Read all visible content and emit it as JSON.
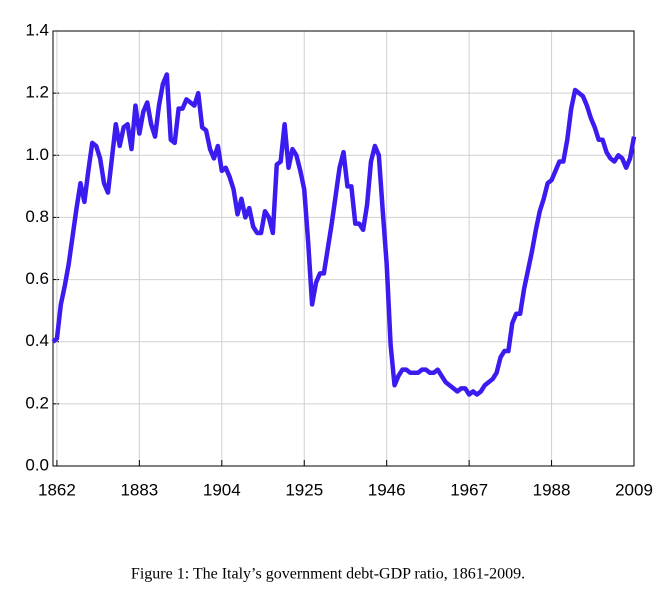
{
  "chart_data": {
    "type": "line",
    "caption": "Figure 1: The Italy’s government debt-GDP ratio, 1861-2009.",
    "color": "#3b1cf0",
    "grid": true,
    "xlim": [
      1861,
      2009
    ],
    "xticks": [
      1862,
      1883,
      1904,
      1925,
      1946,
      1967,
      1988,
      2009
    ],
    "ylim": [
      0,
      1.4
    ],
    "yticks": [
      {
        "value": 0,
        "label": "0.0"
      },
      0.2,
      0.4,
      0.6,
      0.8,
      {
        "value": 1,
        "label": "1.0"
      },
      1.2,
      1.4
    ],
    "x": [
      1861,
      1862,
      1863,
      1864,
      1865,
      1866,
      1867,
      1868,
      1869,
      1870,
      1871,
      1872,
      1873,
      1874,
      1875,
      1876,
      1877,
      1878,
      1879,
      1880,
      1881,
      1882,
      1883,
      1884,
      1885,
      1886,
      1887,
      1888,
      1889,
      1890,
      1891,
      1892,
      1893,
      1894,
      1895,
      1896,
      1897,
      1898,
      1899,
      1900,
      1901,
      1902,
      1903,
      1904,
      1905,
      1906,
      1907,
      1908,
      1909,
      1910,
      1911,
      1912,
      1913,
      1914,
      1915,
      1916,
      1917,
      1918,
      1919,
      1920,
      1921,
      1922,
      1923,
      1924,
      1925,
      1926,
      1927,
      1928,
      1929,
      1930,
      1931,
      1932,
      1933,
      1934,
      1935,
      1936,
      1937,
      1938,
      1939,
      1940,
      1941,
      1942,
      1943,
      1944,
      1945,
      1946,
      1947,
      1948,
      1949,
      1950,
      1951,
      1952,
      1953,
      1954,
      1955,
      1956,
      1957,
      1958,
      1959,
      1960,
      1961,
      1962,
      1963,
      1964,
      1965,
      1966,
      1967,
      1968,
      1969,
      1970,
      1971,
      1972,
      1973,
      1974,
      1975,
      1976,
      1977,
      1978,
      1979,
      1980,
      1981,
      1982,
      1983,
      1984,
      1985,
      1986,
      1987,
      1988,
      1989,
      1990,
      1991,
      1992,
      1993,
      1994,
      1995,
      1996,
      1997,
      1998,
      1999,
      2000,
      2001,
      2002,
      2003,
      2004,
      2005,
      2006,
      2007,
      2008,
      2009
    ],
    "values": [
      0.4,
      0.41,
      0.52,
      0.58,
      0.65,
      0.74,
      0.83,
      0.91,
      0.85,
      0.95,
      1.04,
      1.03,
      0.99,
      0.91,
      0.88,
      0.99,
      1.1,
      1.03,
      1.09,
      1.1,
      1.02,
      1.16,
      1.07,
      1.14,
      1.17,
      1.1,
      1.06,
      1.16,
      1.23,
      1.26,
      1.05,
      1.04,
      1.15,
      1.15,
      1.18,
      1.17,
      1.16,
      1.2,
      1.09,
      1.08,
      1.02,
      0.99,
      1.03,
      0.95,
      0.96,
      0.93,
      0.89,
      0.81,
      0.86,
      0.8,
      0.83,
      0.77,
      0.75,
      0.75,
      0.82,
      0.8,
      0.75,
      0.97,
      0.98,
      1.1,
      0.96,
      1.02,
      1.0,
      0.95,
      0.89,
      0.72,
      0.52,
      0.59,
      0.62,
      0.62,
      0.7,
      0.78,
      0.87,
      0.96,
      1.01,
      0.9,
      0.9,
      0.78,
      0.78,
      0.76,
      0.84,
      0.98,
      1.03,
      1.0,
      0.82,
      0.65,
      0.39,
      0.26,
      0.29,
      0.31,
      0.31,
      0.3,
      0.3,
      0.3,
      0.31,
      0.31,
      0.3,
      0.3,
      0.31,
      0.29,
      0.27,
      0.26,
      0.25,
      0.24,
      0.25,
      0.25,
      0.23,
      0.24,
      0.23,
      0.24,
      0.26,
      0.27,
      0.28,
      0.3,
      0.35,
      0.37,
      0.37,
      0.46,
      0.49,
      0.49,
      0.57,
      0.63,
      0.69,
      0.76,
      0.82,
      0.86,
      0.91,
      0.92,
      0.95,
      0.98,
      0.98,
      1.05,
      1.15,
      1.21,
      1.2,
      1.19,
      1.16,
      1.12,
      1.09,
      1.05,
      1.05,
      1.01,
      0.99,
      0.98,
      1.0,
      0.99,
      0.96,
      0.99,
      1.06
    ]
  }
}
